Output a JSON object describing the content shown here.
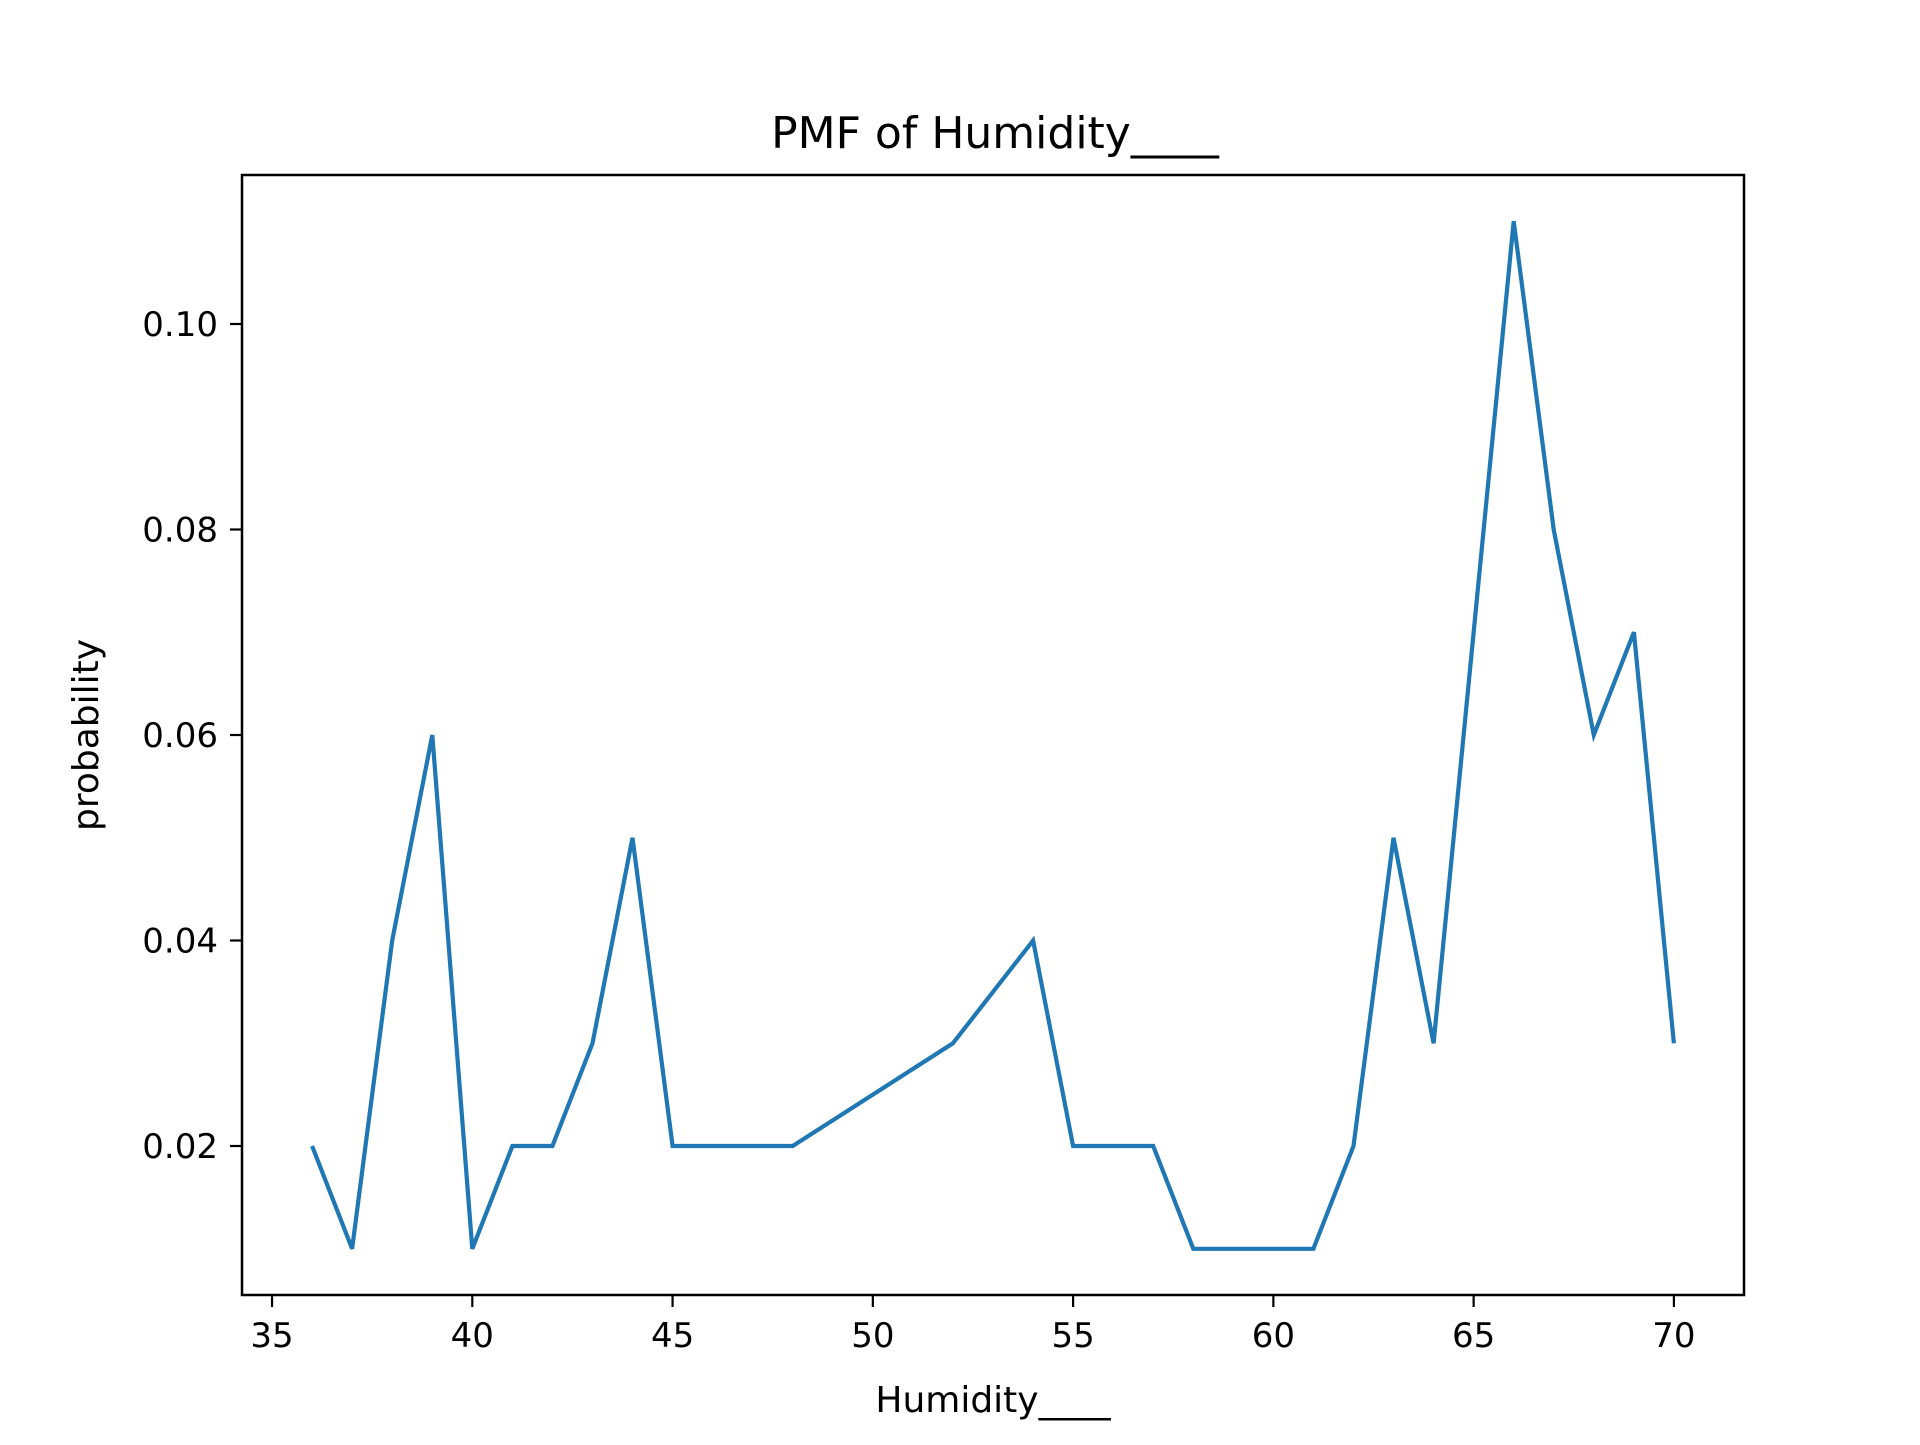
{
  "chart_data": {
    "type": "line",
    "title": "PMF of Humidity____",
    "xlabel": "Humidity____",
    "ylabel": "probability",
    "xlim": [
      34.25,
      71.75
    ],
    "ylim": [
      0.0055,
      0.1145
    ],
    "xticks": [
      35,
      40,
      45,
      50,
      55,
      60,
      65,
      70
    ],
    "xtick_labels": [
      "35",
      "40",
      "45",
      "50",
      "55",
      "60",
      "65",
      "70"
    ],
    "yticks": [
      0.02,
      0.04,
      0.06,
      0.08,
      0.1
    ],
    "ytick_labels": [
      "0.02",
      "0.04",
      "0.06",
      "0.08",
      "0.10"
    ],
    "grid": false,
    "series": [
      {
        "color": "#1f77b4",
        "x": [
          36,
          37,
          38,
          39,
          40,
          41,
          42,
          43,
          44,
          45,
          48,
          52,
          54,
          55,
          57,
          58,
          61,
          62,
          63,
          64,
          66,
          67,
          68,
          69,
          70
        ],
        "y": [
          0.02,
          0.01,
          0.04,
          0.06,
          0.01,
          0.02,
          0.02,
          0.03,
          0.05,
          0.02,
          0.02,
          0.03,
          0.04,
          0.02,
          0.02,
          0.01,
          0.01,
          0.02,
          0.05,
          0.03,
          0.11,
          0.08,
          0.06,
          0.07,
          0.03
        ]
      }
    ]
  }
}
